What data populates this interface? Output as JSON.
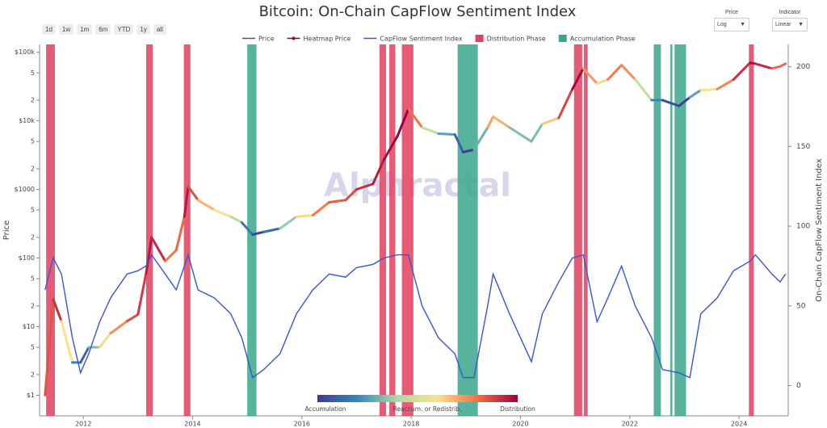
{
  "controls": {
    "ranges": [
      "1d",
      "1w",
      "1m",
      "6m",
      "YTD",
      "1y",
      "all"
    ],
    "dropdowns": [
      {
        "label": "Price",
        "value": "Log"
      },
      {
        "label": "Indicator",
        "value": "Linear"
      }
    ]
  },
  "chart_data": {
    "type": "line",
    "title": "Bitcoin: On-Chain CapFlow Sentiment Index",
    "watermark": "Alphractal",
    "y_label": "Price",
    "y2_label": "On-Chain CapFlow Sentiment Index",
    "x": [
      2011.3,
      2011.45,
      2011.6,
      2011.8,
      2011.95,
      2012.1,
      2012.3,
      2012.5,
      2012.8,
      2013.0,
      2013.15,
      2013.25,
      2013.5,
      2013.7,
      2013.85,
      2013.92,
      2014.1,
      2014.4,
      2014.7,
      2014.9,
      2015.1,
      2015.3,
      2015.6,
      2015.9,
      2016.2,
      2016.5,
      2016.8,
      2017.0,
      2017.3,
      2017.5,
      2017.75,
      2017.95,
      2018.2,
      2018.5,
      2018.8,
      2018.95,
      2019.15,
      2019.4,
      2019.5,
      2019.8,
      2020.2,
      2020.4,
      2020.7,
      2020.95,
      2021.15,
      2021.4,
      2021.6,
      2021.85,
      2022.1,
      2022.4,
      2022.6,
      2022.9,
      2023.1,
      2023.3,
      2023.6,
      2023.9,
      2024.2,
      2024.3,
      2024.6,
      2024.75,
      2024.85
    ],
    "xlim": [
      2011.2,
      2024.9
    ],
    "xticks": [
      2012,
      2014,
      2016,
      2018,
      2020,
      2022,
      2024
    ],
    "ylim": [
      0.5,
      130000
    ],
    "log_scale": true,
    "yticks": [
      {
        "value": 1,
        "label": "$1"
      },
      2,
      5,
      {
        "value": 10,
        "label": "$10"
      },
      {
        "value": 20,
        "label": "2"
      },
      {
        "value": 50,
        "label": "5"
      },
      {
        "value": 100,
        "label": "$100"
      },
      {
        "value": 200,
        "label": "2"
      },
      {
        "value": 500,
        "label": "5"
      },
      {
        "value": 1000,
        "label": "$1000"
      },
      {
        "value": 2000,
        "label": "2"
      },
      {
        "value": 5000,
        "label": "5"
      },
      {
        "value": 10000,
        "label": "$10k"
      },
      {
        "value": 20000,
        "label": "2"
      },
      {
        "value": 50000,
        "label": "5"
      },
      {
        "value": 100000,
        "label": "$100k"
      }
    ],
    "y2lim": [
      -19,
      214
    ],
    "y2ticks": [
      0,
      50,
      100,
      150,
      200
    ],
    "series": [
      {
        "name": "Price",
        "color": "#555555",
        "values": [
          1,
          25,
          12,
          3,
          3,
          5,
          5,
          8,
          12,
          15,
          60,
          200,
          90,
          130,
          400,
          1100,
          700,
          500,
          400,
          330,
          220,
          240,
          270,
          400,
          420,
          650,
          700,
          1000,
          1200,
          2700,
          6000,
          15000,
          8000,
          6500,
          6300,
          3500,
          3800,
          8000,
          11500,
          8000,
          5000,
          9000,
          11000,
          29000,
          58000,
          35000,
          40000,
          65000,
          40000,
          20000,
          20000,
          16500,
          22000,
          28000,
          29000,
          40000,
          70000,
          68000,
          58000,
          62000,
          68000
        ]
      },
      {
        "name": "CapFlow Sentiment Index",
        "color": "#3656d6",
        "axis": "y2",
        "values": [
          60,
          80,
          70,
          30,
          8,
          20,
          40,
          55,
          70,
          72,
          75,
          82,
          70,
          60,
          75,
          82,
          60,
          55,
          45,
          30,
          5,
          10,
          20,
          45,
          60,
          70,
          68,
          74,
          76,
          80,
          82,
          82,
          50,
          30,
          20,
          5,
          5,
          50,
          70,
          45,
          15,
          45,
          65,
          80,
          82,
          40,
          55,
          75,
          50,
          30,
          10,
          8,
          5,
          45,
          55,
          72,
          78,
          82,
          70,
          65,
          70
        ]
      }
    ],
    "heatmap": {
      "name": "Heatmap Price",
      "colorscale": [
        "#3f3a98",
        "#3288bd",
        "#abdda4",
        "#fee08b",
        "#f46d43",
        "#9e0142"
      ],
      "labels": [
        "Accumulation",
        "Reaccum. or Redistrib.",
        "Distribution"
      ]
    },
    "phases": [
      {
        "name": "Distribution Phase",
        "color": "#e2405e",
        "ranges": [
          [
            2011.32,
            2011.48
          ],
          [
            2013.15,
            2013.27
          ],
          [
            2013.84,
            2013.96
          ],
          [
            2017.42,
            2017.54
          ],
          [
            2017.6,
            2017.71
          ],
          [
            2017.83,
            2018.04
          ],
          [
            2020.98,
            2021.13
          ],
          [
            2021.16,
            2021.23
          ],
          [
            2024.18,
            2024.27
          ]
        ]
      },
      {
        "name": "Accumulation Phase",
        "color": "#3aa68a",
        "ranges": [
          [
            2015.0,
            2015.17
          ],
          [
            2018.85,
            2019.22
          ],
          [
            2022.44,
            2022.57
          ],
          [
            2022.74,
            2022.78
          ],
          [
            2022.82,
            2023.03
          ]
        ]
      }
    ]
  }
}
